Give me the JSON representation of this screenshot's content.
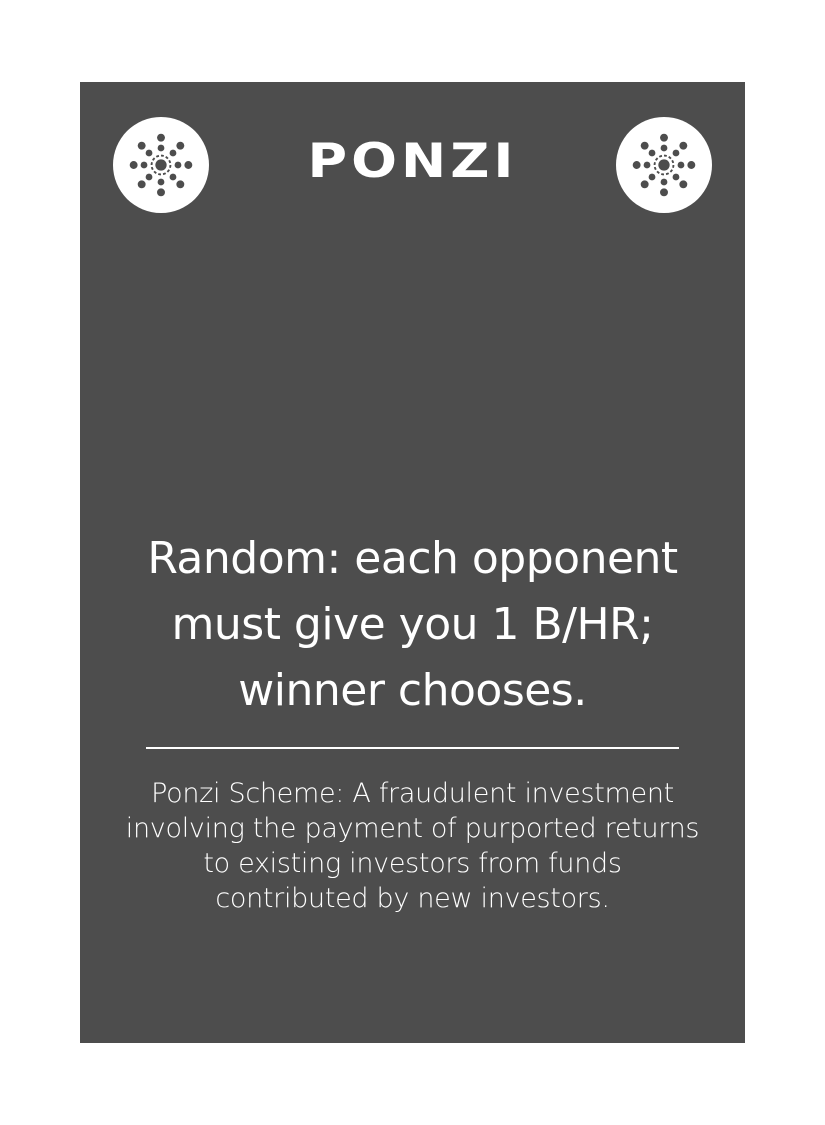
{
  "card": {
    "title": "PONZI",
    "emblem_icon": "network-node-icon",
    "effect_line1": "Random: each opponent",
    "effect_line2": "must give you 1 B/HR;",
    "effect_line3": "winner chooses.",
    "definition_line1": "Ponzi Scheme: A fraudulent investment",
    "definition_line2": "involving the payment of purported returns",
    "definition_line3": "to existing investors from funds",
    "definition_line4": "contributed by new investors."
  },
  "colors": {
    "card_background": "#4d4d4d",
    "page_background": "#ffffff",
    "text": "#ffffff",
    "emblem_fill": "#ffffff",
    "emblem_icon": "#4d4d4d"
  }
}
